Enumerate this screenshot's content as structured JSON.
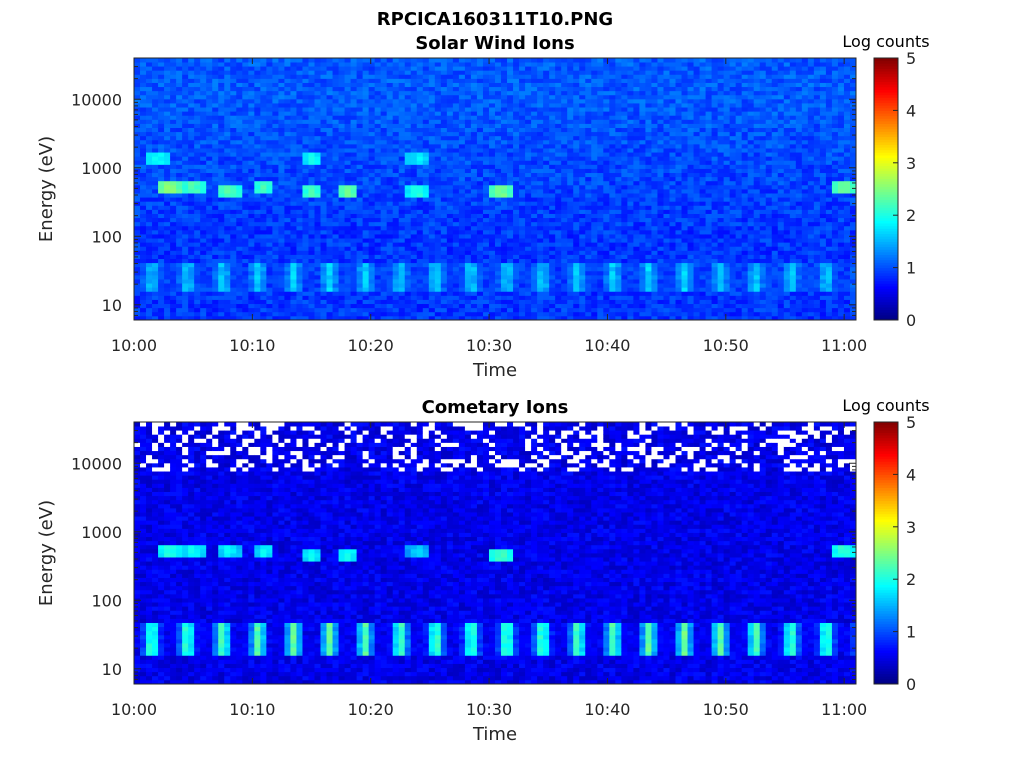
{
  "figure": {
    "title": "RPCICA160311T10.PNG"
  },
  "chart_data": [
    {
      "type": "heatmap",
      "title": "Solar Wind Ions",
      "xlabel": "Time",
      "ylabel": "Energy (eV)",
      "x_tick_labels": [
        "10:00",
        "10:10",
        "10:20",
        "10:30",
        "10:40",
        "10:50",
        "11:00"
      ],
      "y_tick_labels": [
        "10",
        "100",
        "1000",
        "10000"
      ],
      "y_scale": "log",
      "ylim": [
        6,
        40000
      ],
      "xlim": [
        "10:00",
        "11:01"
      ],
      "colorbar": {
        "label": "Log counts",
        "ticks": [
          "0",
          "1",
          "2",
          "3",
          "4",
          "5"
        ],
        "range": [
          0,
          5
        ],
        "colormap": "jet"
      },
      "features": {
        "background_log_counts": 0.7,
        "low_energy_band": {
          "energy_eV": [
            15,
            40
          ],
          "peak_log_counts": 1.6,
          "period_min": 3
        },
        "peaks": [
          {
            "time": "10:02",
            "energy_eV": 1300,
            "log_counts": 1.9
          },
          {
            "time": "10:03",
            "energy_eV": 500,
            "log_counts": 2.6
          },
          {
            "time": "10:05",
            "energy_eV": 500,
            "log_counts": 2.3
          },
          {
            "time": "10:08",
            "energy_eV": 480,
            "log_counts": 2.3
          },
          {
            "time": "10:11",
            "energy_eV": 500,
            "log_counts": 2.2
          },
          {
            "time": "10:15",
            "energy_eV": 480,
            "log_counts": 2.2
          },
          {
            "time": "10:15",
            "energy_eV": 1300,
            "log_counts": 1.9
          },
          {
            "time": "10:18",
            "energy_eV": 480,
            "log_counts": 2.4
          },
          {
            "time": "10:24",
            "energy_eV": 480,
            "log_counts": 2.0
          },
          {
            "time": "10:24",
            "energy_eV": 1300,
            "log_counts": 1.8
          },
          {
            "time": "10:31",
            "energy_eV": 480,
            "log_counts": 2.5
          },
          {
            "time": "11:00",
            "energy_eV": 500,
            "log_counts": 2.4
          }
        ]
      }
    },
    {
      "type": "heatmap",
      "title": "Cometary Ions",
      "xlabel": "Time",
      "ylabel": "Energy (eV)",
      "x_tick_labels": [
        "10:00",
        "10:10",
        "10:20",
        "10:30",
        "10:40",
        "10:50",
        "11:00"
      ],
      "y_tick_labels": [
        "10",
        "100",
        "1000",
        "10000"
      ],
      "y_scale": "log",
      "ylim": [
        6,
        40000
      ],
      "xlim": [
        "10:00",
        "11:01"
      ],
      "colorbar": {
        "label": "Log counts",
        "ticks": [
          "0",
          "1",
          "2",
          "3",
          "4",
          "5"
        ],
        "range": [
          0,
          5
        ],
        "colormap": "jet"
      },
      "features": {
        "background_log_counts": 0.3,
        "missing_data_above_eV": 8000,
        "low_energy_band": {
          "energy_eV": [
            15,
            45
          ],
          "peak_log_counts": 2.4,
          "period_min": 3
        },
        "peaks": [
          {
            "time": "10:03",
            "energy_eV": 550,
            "log_counts": 2.0
          },
          {
            "time": "10:05",
            "energy_eV": 550,
            "log_counts": 1.9
          },
          {
            "time": "10:08",
            "energy_eV": 500,
            "log_counts": 1.8
          },
          {
            "time": "10:11",
            "energy_eV": 520,
            "log_counts": 1.8
          },
          {
            "time": "10:15",
            "energy_eV": 480,
            "log_counts": 1.8
          },
          {
            "time": "10:18",
            "energy_eV": 480,
            "log_counts": 1.9
          },
          {
            "time": "10:24",
            "energy_eV": 500,
            "log_counts": 1.6
          },
          {
            "time": "10:31",
            "energy_eV": 480,
            "log_counts": 2.2
          },
          {
            "time": "11:00",
            "energy_eV": 500,
            "log_counts": 2.1
          }
        ]
      }
    }
  ]
}
